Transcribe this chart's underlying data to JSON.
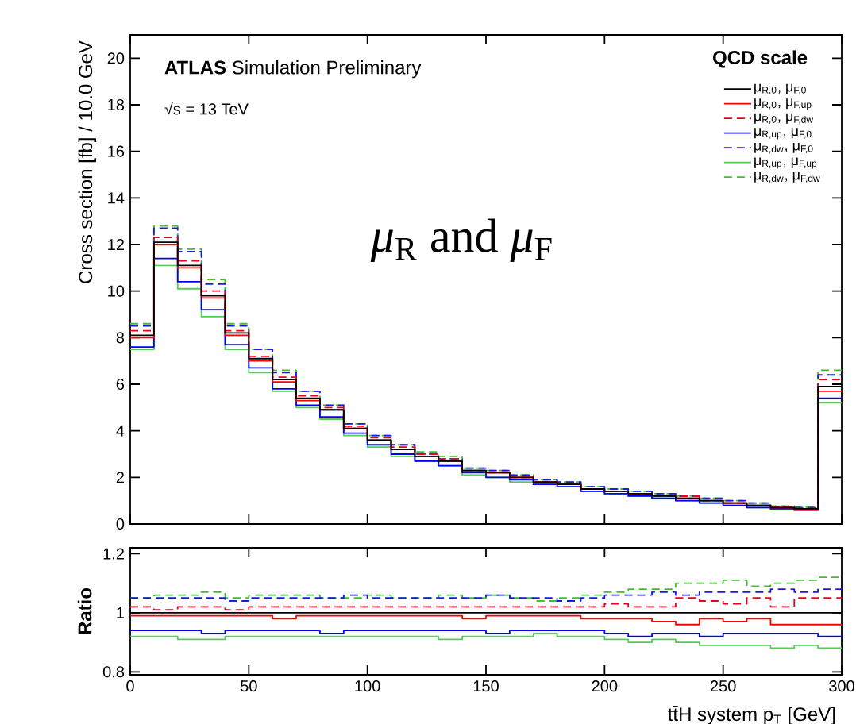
{
  "chart_data": [
    {
      "type": "histogram",
      "title": "**ATLAS** Simulation Preliminary",
      "subtitle": "√s = 13 TeV",
      "ylabel": "Cross section [fb] / 10.0 GeV",
      "legend_title": "QCD scale",
      "legend": "top right",
      "annotations": [
        "*μ*$_{R}$ and *μ*$_{F}$"
      ],
      "bins": [
        0,
        10,
        20,
        30,
        40,
        50,
        60,
        70,
        80,
        90,
        100,
        110,
        120,
        130,
        140,
        150,
        160,
        170,
        180,
        190,
        200,
        210,
        220,
        230,
        240,
        250,
        260,
        270,
        280,
        290,
        300
      ],
      "xlim": [
        0,
        300
      ],
      "xticks": [
        0,
        50,
        100,
        150,
        200,
        250,
        300
      ],
      "tick_labels": "y",
      "ylim": [
        0,
        21
      ],
      "yticks": [
        0,
        2,
        4,
        6,
        8,
        10,
        12,
        14,
        16,
        18,
        20
      ],
      "series": [
        {
          "name": "μ$_{R,0}$, μ$_{F,0}$",
          "color": "#000000",
          "line_style": "solid",
          "values": [
            8.1,
            12.1,
            11.1,
            9.8,
            8.2,
            7.1,
            6.2,
            5.4,
            4.9,
            4.1,
            3.6,
            3.2,
            2.9,
            2.7,
            2.3,
            2.2,
            2.0,
            1.8,
            1.7,
            1.5,
            1.4,
            1.3,
            1.2,
            1.1,
            1.0,
            0.9,
            0.8,
            0.7,
            0.65,
            5.9
          ]
        },
        {
          "name": "μ$_{R,0}$, μ$_{F,up}$",
          "color": "#ff0000",
          "line_style": "solid",
          "values": [
            8.0,
            12.0,
            11.0,
            9.7,
            8.1,
            7.0,
            6.1,
            5.3,
            4.9,
            4.1,
            3.6,
            3.2,
            2.9,
            2.7,
            2.3,
            2.2,
            2.0,
            1.8,
            1.7,
            1.5,
            1.4,
            1.3,
            1.2,
            1.1,
            1.0,
            0.9,
            0.8,
            0.7,
            0.62,
            5.7
          ]
        },
        {
          "name": "μ$_{R,0}$, μ$_{F,dw}$",
          "color": "#e8001c",
          "line_style": "dashed",
          "values": [
            8.3,
            12.3,
            11.3,
            10.0,
            8.3,
            7.2,
            6.3,
            5.5,
            5.0,
            4.2,
            3.7,
            3.3,
            3.0,
            2.8,
            2.3,
            2.2,
            2.0,
            1.8,
            1.7,
            1.5,
            1.4,
            1.3,
            1.2,
            1.2,
            1.0,
            0.9,
            0.8,
            0.7,
            0.68,
            6.2
          ]
        },
        {
          "name": "μ$_{R,up}$, μ$_{F,0}$",
          "color": "#0000ff",
          "line_style": "solid",
          "values": [
            7.6,
            11.4,
            10.4,
            9.2,
            7.7,
            6.7,
            5.8,
            5.1,
            4.6,
            3.9,
            3.4,
            3.0,
            2.7,
            2.5,
            2.2,
            2.0,
            1.9,
            1.7,
            1.6,
            1.4,
            1.3,
            1.2,
            1.1,
            1.0,
            0.9,
            0.8,
            0.7,
            0.65,
            0.6,
            5.4
          ]
        },
        {
          "name": "μ$_{R,dw}$, μ$_{F,0}$",
          "color": "#1a1ae0",
          "line_style": "dashed",
          "values": [
            8.5,
            12.7,
            11.7,
            10.3,
            8.5,
            7.5,
            6.5,
            5.7,
            5.1,
            4.3,
            3.8,
            3.4,
            3.0,
            2.8,
            2.4,
            2.3,
            2.1,
            1.9,
            1.8,
            1.6,
            1.5,
            1.4,
            1.3,
            1.2,
            1.1,
            1.0,
            0.9,
            0.75,
            0.7,
            6.4
          ]
        },
        {
          "name": "μ$_{R,up}$, μ$_{F,up}$",
          "color": "#55cc55",
          "line_style": "solid",
          "values": [
            7.5,
            11.1,
            10.1,
            8.9,
            7.5,
            6.5,
            5.7,
            5.0,
            4.5,
            3.8,
            3.3,
            2.9,
            2.7,
            2.5,
            2.1,
            2.0,
            1.8,
            1.7,
            1.6,
            1.4,
            1.3,
            1.2,
            1.1,
            1.0,
            0.9,
            0.8,
            0.7,
            0.62,
            0.58,
            5.2
          ]
        },
        {
          "name": "μ$_{R,dw}$, μ$_{F,dw}$",
          "color": "#44bb33",
          "line_style": "dashed",
          "values": [
            8.6,
            12.8,
            11.8,
            10.5,
            8.6,
            7.5,
            6.6,
            5.7,
            5.1,
            4.3,
            3.8,
            3.4,
            3.1,
            2.9,
            2.4,
            2.3,
            2.1,
            1.9,
            1.8,
            1.6,
            1.5,
            1.4,
            1.3,
            1.2,
            1.1,
            1.0,
            0.9,
            0.77,
            0.72,
            6.6
          ]
        }
      ]
    },
    {
      "type": "histogram",
      "xlabel": "tt̄H system p$_{T}$ [GeV]",
      "ylabel": "Ratio",
      "bins": [
        0,
        10,
        20,
        30,
        40,
        50,
        60,
        70,
        80,
        90,
        100,
        110,
        120,
        130,
        140,
        150,
        160,
        170,
        180,
        190,
        200,
        210,
        220,
        230,
        240,
        250,
        260,
        270,
        280,
        290,
        300
      ],
      "xlim": [
        0,
        300
      ],
      "xticks": [
        0,
        50,
        100,
        150,
        200,
        250,
        300
      ],
      "ylim": [
        0.79,
        1.22
      ],
      "yticks": [
        0.8,
        1,
        1.2
      ],
      "ref_lines": [
        {
          "axis": "y",
          "value": 1,
          "color": "#000000"
        }
      ],
      "series": [
        {
          "color": "#ff0000",
          "line_style": "solid",
          "values": [
            0.99,
            0.99,
            0.99,
            0.99,
            0.99,
            0.99,
            0.98,
            0.99,
            0.99,
            0.99,
            0.99,
            0.99,
            0.99,
            0.99,
            0.98,
            0.99,
            0.99,
            0.99,
            0.99,
            0.98,
            0.98,
            0.98,
            0.97,
            0.96,
            0.98,
            0.97,
            0.98,
            0.96,
            0.96,
            0.96
          ]
        },
        {
          "color": "#e8001c",
          "line_style": "dashed",
          "values": [
            1.02,
            1.01,
            1.02,
            1.02,
            1.01,
            1.02,
            1.02,
            1.02,
            1.02,
            1.02,
            1.02,
            1.02,
            1.02,
            1.02,
            1.02,
            1.02,
            1.02,
            1.02,
            1.02,
            1.02,
            1.03,
            1.02,
            1.02,
            1.05,
            1.04,
            1.03,
            1.05,
            1.02,
            1.05,
            1.05
          ]
        },
        {
          "color": "#0000ff",
          "line_style": "solid",
          "values": [
            0.94,
            0.94,
            0.94,
            0.93,
            0.94,
            0.94,
            0.94,
            0.94,
            0.93,
            0.94,
            0.94,
            0.94,
            0.94,
            0.94,
            0.94,
            0.93,
            0.94,
            0.94,
            0.94,
            0.94,
            0.93,
            0.92,
            0.93,
            0.93,
            0.92,
            0.93,
            0.93,
            0.93,
            0.93,
            0.92
          ]
        },
        {
          "color": "#1a1ae0",
          "line_style": "dashed",
          "values": [
            1.05,
            1.05,
            1.05,
            1.05,
            1.04,
            1.05,
            1.05,
            1.05,
            1.05,
            1.06,
            1.05,
            1.05,
            1.05,
            1.05,
            1.05,
            1.06,
            1.05,
            1.05,
            1.04,
            1.05,
            1.06,
            1.06,
            1.07,
            1.06,
            1.07,
            1.07,
            1.07,
            1.08,
            1.07,
            1.08
          ]
        },
        {
          "color": "#55cc55",
          "line_style": "solid",
          "values": [
            0.92,
            0.92,
            0.91,
            0.91,
            0.92,
            0.92,
            0.92,
            0.92,
            0.92,
            0.92,
            0.92,
            0.92,
            0.92,
            0.91,
            0.92,
            0.92,
            0.92,
            0.93,
            0.92,
            0.92,
            0.91,
            0.9,
            0.91,
            0.9,
            0.89,
            0.89,
            0.89,
            0.88,
            0.89,
            0.88
          ]
        },
        {
          "color": "#44bb33",
          "line_style": "dashed",
          "values": [
            1.05,
            1.06,
            1.06,
            1.07,
            1.05,
            1.06,
            1.06,
            1.06,
            1.05,
            1.05,
            1.06,
            1.05,
            1.05,
            1.06,
            1.05,
            1.06,
            1.05,
            1.04,
            1.05,
            1.06,
            1.07,
            1.08,
            1.08,
            1.1,
            1.1,
            1.11,
            1.09,
            1.1,
            1.11,
            1.12
          ]
        }
      ]
    }
  ]
}
